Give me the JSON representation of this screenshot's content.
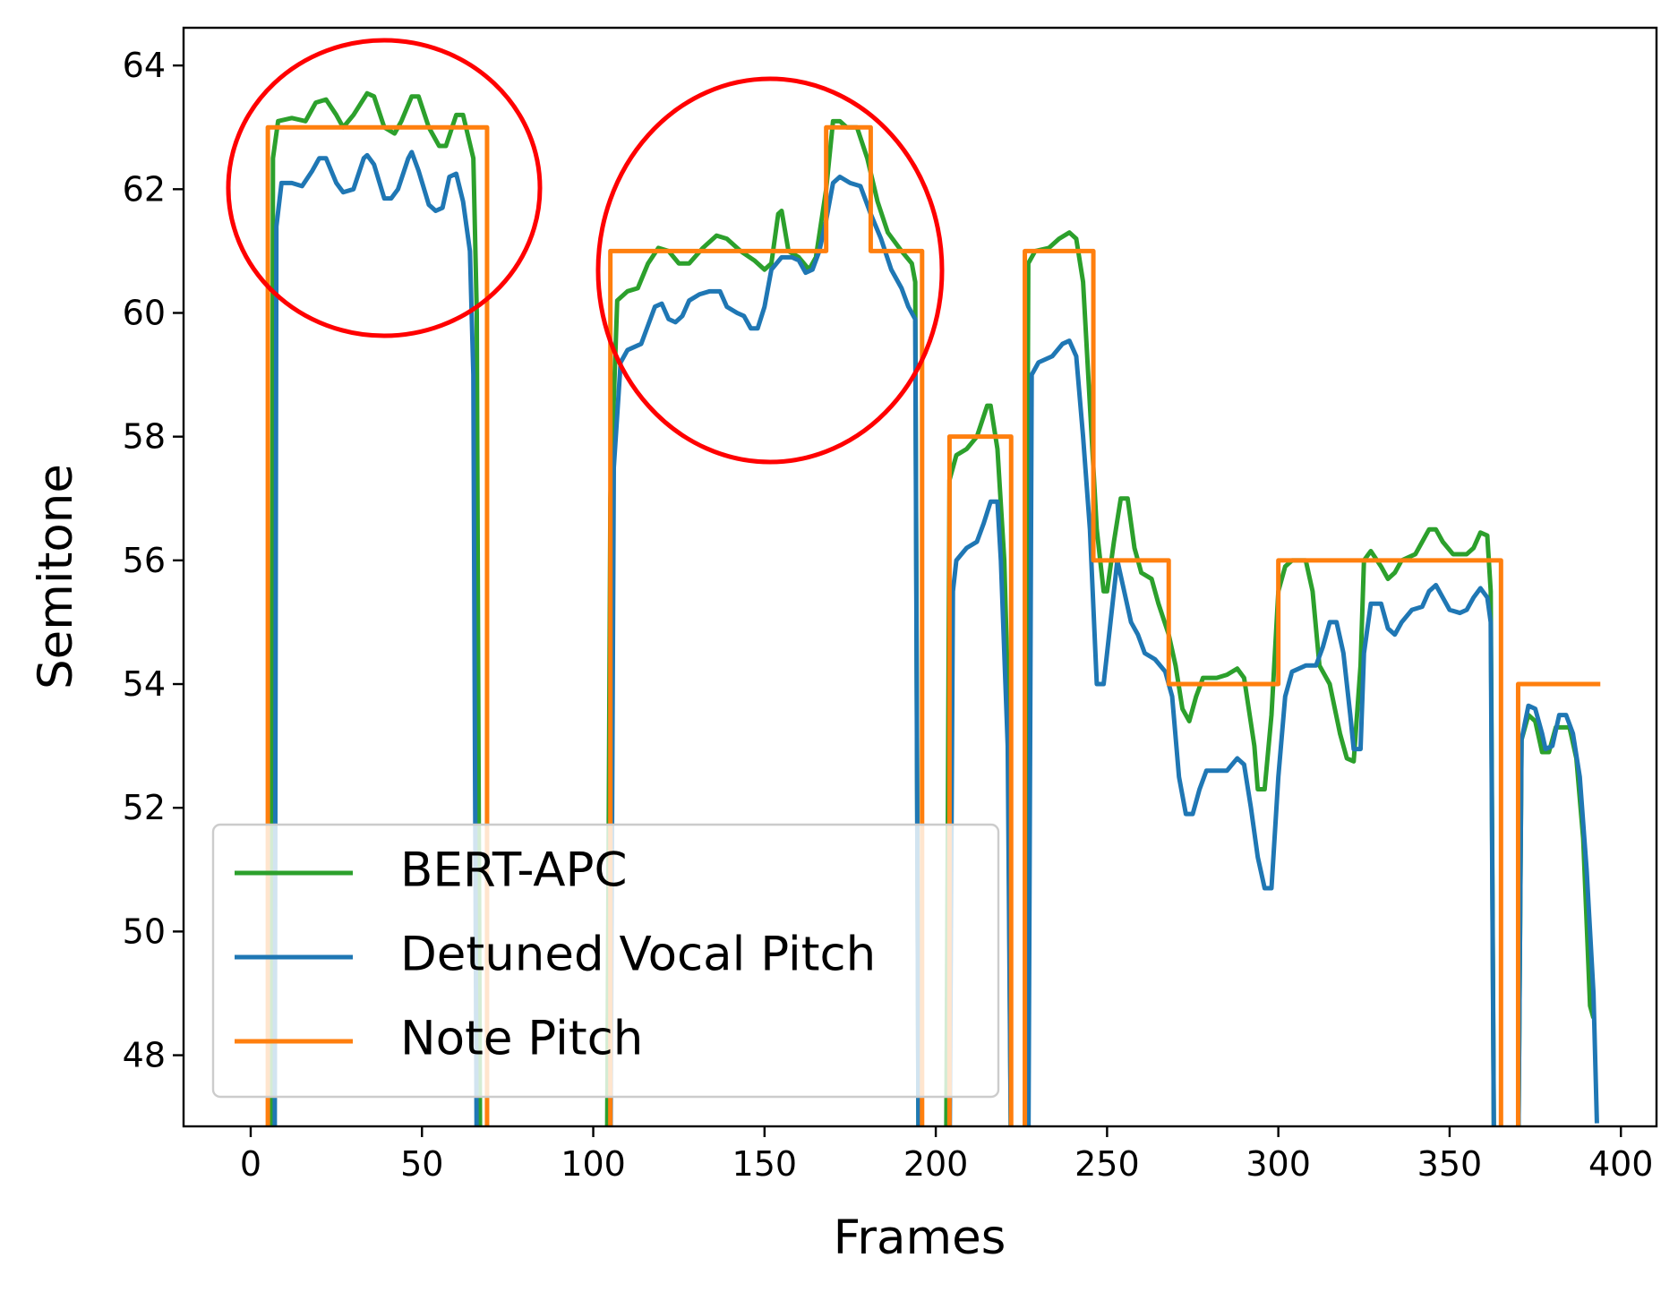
{
  "chart_data": {
    "type": "line",
    "xlabel": "Frames",
    "ylabel": "Semitone",
    "xlim": [
      -19.6,
      410.4
    ],
    "ylim": [
      46.85,
      64.61
    ],
    "xticks": [
      0,
      50,
      100,
      150,
      200,
      250,
      300,
      350,
      400
    ],
    "yticks": [
      48,
      50,
      52,
      54,
      56,
      58,
      60,
      62,
      64
    ],
    "legend": "lower left",
    "series": [
      {
        "name": "BERT-APC",
        "color": "#2ca02c",
        "x": [
          6,
          6.5,
          8,
          12,
          16,
          19,
          22,
          25,
          27,
          30,
          34,
          36,
          39,
          42,
          44,
          47,
          49,
          52,
          55,
          57,
          60,
          62,
          65,
          66,
          67,
          104,
          105,
          107,
          110,
          113,
          116,
          119,
          122,
          125,
          128,
          132,
          136,
          139,
          143,
          147,
          150,
          152,
          154,
          155,
          157,
          160,
          163,
          165,
          168,
          170,
          172,
          174,
          177,
          180,
          183,
          186,
          190,
          193,
          194,
          195,
          203,
          204,
          206,
          209,
          212,
          215,
          216,
          218,
          220,
          221,
          222,
          226,
          227,
          229,
          233,
          236,
          239,
          241,
          243,
          245,
          247,
          249,
          250,
          252,
          254,
          256,
          258,
          260,
          263,
          265,
          268,
          270,
          272,
          274,
          276,
          278,
          282,
          285,
          288,
          290,
          293,
          294,
          296,
          298,
          300,
          302,
          304,
          308,
          310,
          312,
          315,
          318,
          320,
          322,
          324,
          325,
          327,
          330,
          332,
          334,
          336,
          340,
          342,
          344,
          346,
          348,
          351,
          355,
          357,
          359,
          361,
          362,
          363,
          370,
          371,
          373,
          375,
          377,
          379,
          381,
          383,
          385,
          387,
          389,
          391,
          392
        ],
        "values": [
          46,
          62.5,
          63.1,
          63.15,
          63.1,
          63.4,
          63.45,
          63.2,
          63.0,
          63.2,
          63.55,
          63.5,
          63.0,
          62.9,
          63.1,
          63.5,
          63.5,
          63.0,
          62.7,
          62.7,
          63.2,
          63.2,
          62.5,
          60,
          46,
          46,
          57,
          60.2,
          60.35,
          60.4,
          60.8,
          61.05,
          61.0,
          60.8,
          60.8,
          61.05,
          61.25,
          61.2,
          61.0,
          60.85,
          60.7,
          60.8,
          61.6,
          61.65,
          61.0,
          60.9,
          60.7,
          60.9,
          62.0,
          63.1,
          63.1,
          63.0,
          63.0,
          62.5,
          61.8,
          61.3,
          61.0,
          60.8,
          60.5,
          46,
          46,
          57.3,
          57.7,
          57.8,
          58.0,
          58.5,
          58.5,
          57.8,
          56,
          54,
          46,
          46,
          60.8,
          61.0,
          61.05,
          61.2,
          61.3,
          61.2,
          60.5,
          58.5,
          56.5,
          55.5,
          55.5,
          56.3,
          57.0,
          57.0,
          56.2,
          55.8,
          55.7,
          55.3,
          54.8,
          54.3,
          53.6,
          53.4,
          53.8,
          54.1,
          54.1,
          54.15,
          54.25,
          54.1,
          53.0,
          52.3,
          52.3,
          53.5,
          55.5,
          55.9,
          56.0,
          56.0,
          55.5,
          54.3,
          54.0,
          53.2,
          52.8,
          52.75,
          54.3,
          56.0,
          56.15,
          55.9,
          55.7,
          55.8,
          56.0,
          56.1,
          56.3,
          56.5,
          56.5,
          56.3,
          56.1,
          56.1,
          56.2,
          56.45,
          56.4,
          55.5,
          46,
          46,
          53.1,
          53.5,
          53.4,
          52.9,
          52.9,
          53.3,
          53.3,
          53.3,
          52.8,
          51.5,
          48.8,
          48.6
        ]
      },
      {
        "name": "Detuned Vocal Pitch",
        "color": "#1f77b4",
        "x": [
          7,
          7.5,
          9,
          12,
          15,
          18,
          20,
          22,
          25,
          27,
          30,
          33,
          34,
          36,
          39,
          41,
          43,
          46,
          47,
          49,
          52,
          54,
          56,
          58,
          60,
          62,
          64,
          65,
          66,
          105,
          106,
          108,
          110,
          114,
          116,
          118,
          120,
          122,
          124,
          126,
          128,
          131,
          134,
          137,
          139,
          142,
          144,
          146,
          148,
          150,
          152,
          155,
          158,
          160,
          162,
          164,
          166,
          168,
          170,
          172,
          175,
          178,
          181,
          184,
          187,
          190,
          192,
          194,
          195,
          204,
          205,
          206,
          209,
          212,
          214,
          216,
          218,
          219,
          221,
          222,
          227,
          228,
          230,
          234,
          237,
          239,
          241,
          243,
          245,
          247,
          249,
          251,
          253,
          255,
          257,
          259,
          261,
          264,
          267,
          269,
          271,
          273,
          275,
          277,
          279,
          282,
          285,
          288,
          290,
          292,
          294,
          296,
          298,
          300,
          302,
          304,
          308,
          311,
          313,
          315,
          317,
          319,
          321,
          322,
          324,
          325,
          327,
          330,
          332,
          334,
          336,
          339,
          342,
          344,
          346,
          348,
          350,
          353,
          355,
          357,
          359,
          361,
          362,
          363,
          370,
          371,
          373,
          375,
          377,
          378,
          380,
          382,
          384,
          386,
          388,
          390,
          392,
          393
        ],
        "values": [
          46,
          61.4,
          62.1,
          62.1,
          62.05,
          62.3,
          62.5,
          62.5,
          62.1,
          61.95,
          62.0,
          62.5,
          62.55,
          62.4,
          61.85,
          61.85,
          62.0,
          62.5,
          62.6,
          62.3,
          61.75,
          61.65,
          61.7,
          62.2,
          62.25,
          61.8,
          61.0,
          59,
          46,
          46,
          57.5,
          59.2,
          59.4,
          59.5,
          59.8,
          60.1,
          60.15,
          59.9,
          59.85,
          59.95,
          60.2,
          60.3,
          60.35,
          60.35,
          60.1,
          60.0,
          59.95,
          59.75,
          59.75,
          60.1,
          60.7,
          60.9,
          60.9,
          60.85,
          60.65,
          60.7,
          61.0,
          61.5,
          62.1,
          62.2,
          62.1,
          62.05,
          61.6,
          61.2,
          60.7,
          60.4,
          60.1,
          59.9,
          46,
          46,
          55.5,
          56.0,
          56.2,
          56.3,
          56.6,
          56.95,
          56.95,
          56,
          53,
          46,
          46,
          59.0,
          59.2,
          59.3,
          59.5,
          59.55,
          59.3,
          58.0,
          56.5,
          54.0,
          54.0,
          55.0,
          56.0,
          55.5,
          55.0,
          54.8,
          54.5,
          54.4,
          54.2,
          53.8,
          52.5,
          51.9,
          51.9,
          52.3,
          52.6,
          52.6,
          52.6,
          52.8,
          52.7,
          52.0,
          51.2,
          50.7,
          50.7,
          52.5,
          53.8,
          54.2,
          54.3,
          54.3,
          54.6,
          55.0,
          55.0,
          54.5,
          53.5,
          52.95,
          52.95,
          54.5,
          55.3,
          55.3,
          54.9,
          54.8,
          55.0,
          55.2,
          55.25,
          55.5,
          55.6,
          55.4,
          55.2,
          55.15,
          55.2,
          55.4,
          55.55,
          55.4,
          55,
          46,
          46,
          53.1,
          53.65,
          53.6,
          53.2,
          52.95,
          53.0,
          53.5,
          53.5,
          53.2,
          52.5,
          51.0,
          49,
          46.9
        ]
      },
      {
        "name": "Note Pitch",
        "color": "#ff7f0e",
        "x": [
          5,
          5,
          69,
          69,
          105,
          105,
          168,
          168,
          181,
          181,
          196,
          196,
          204,
          204,
          222,
          222,
          226,
          226,
          246,
          246,
          268,
          268,
          300,
          300,
          365,
          365,
          370,
          370,
          394
        ],
        "values": [
          46,
          63,
          63,
          46,
          46,
          61,
          61,
          63,
          63,
          61,
          61,
          46,
          46,
          58,
          58,
          46,
          46,
          61,
          61,
          56,
          56,
          54,
          54,
          56,
          56,
          46,
          46,
          54,
          54
        ]
      }
    ]
  }
}
